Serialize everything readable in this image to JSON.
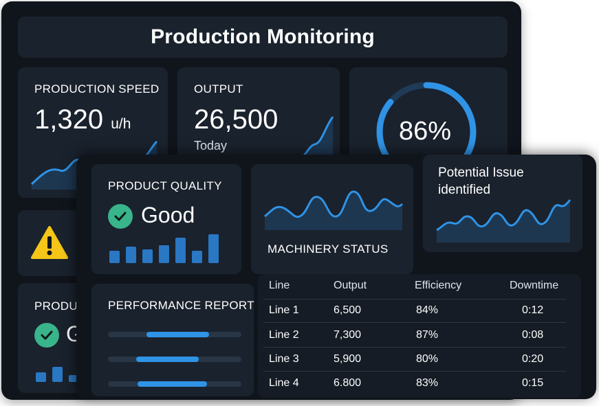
{
  "dashboard": {
    "title": "Production Monitoring"
  },
  "production_speed": {
    "label": "PRODUCTION SPEED",
    "value": "1,320",
    "unit": "u/h"
  },
  "output": {
    "label": "OUTPUT",
    "value": "26,500",
    "subtitle": "Today"
  },
  "gauge": {
    "value_text": "86%",
    "fraction": 0.86,
    "color": "#2f93e6"
  },
  "alert": {
    "icon": "warning-icon",
    "text": "Potential Issue identified"
  },
  "quality_back": {
    "label_visible": "PRODUC",
    "value_visible": "G"
  },
  "product_quality": {
    "label": "PRODUCT QUALITY",
    "value": "Good",
    "icon": "check-circle-icon",
    "bar_levels": [
      0.4,
      0.55,
      0.45,
      0.6,
      0.85,
      0.4,
      0.95
    ]
  },
  "machinery": {
    "label": "MACHINERY STATUS"
  },
  "performance": {
    "label": "PERFORMANCE REPORT",
    "bars": [
      {
        "start": 0.29,
        "end": 0.76
      },
      {
        "start": 0.21,
        "end": 0.68
      },
      {
        "start": 0.22,
        "end": 0.74
      }
    ]
  },
  "table": {
    "headers": [
      "Line",
      "Output",
      "Efficiency",
      "Downtime"
    ],
    "rows": [
      [
        "Line 1",
        "6,500",
        "84%",
        "0:12"
      ],
      [
        "Line 2",
        "7,300",
        "87%",
        "0:08"
      ],
      [
        "Line 3",
        "5,900",
        "80%",
        "0:20"
      ],
      [
        "Line 4",
        "6.800",
        "83%",
        "0:15"
      ]
    ]
  },
  "colors": {
    "accent": "#2f93e6",
    "success": "#39b48b",
    "warning": "#f5c518",
    "panel": "#1a222d",
    "background": "#10151c"
  }
}
